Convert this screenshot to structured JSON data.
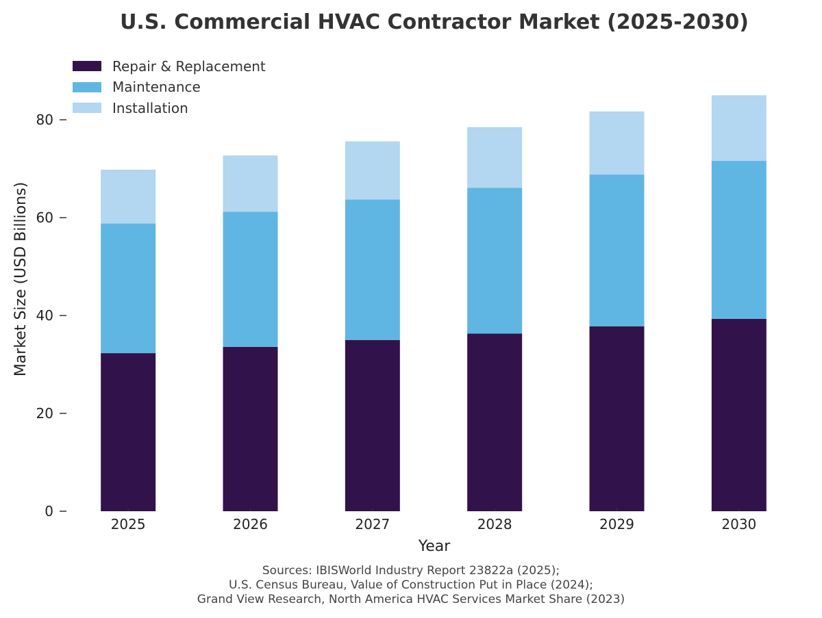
{
  "chart_data": {
    "type": "bar",
    "stacked": true,
    "title": "U.S. Commercial HVAC Contractor Market (2025-2030)",
    "xlabel": "Year",
    "ylabel": "Market Size (USD Billions)",
    "categories": [
      "2025",
      "2026",
      "2027",
      "2028",
      "2029",
      "2030"
    ],
    "ylim": [
      0,
      92
    ],
    "yticks": [
      "0",
      "20",
      "40",
      "60",
      "80"
    ],
    "grid": false,
    "legend_position": "top-left",
    "series": [
      {
        "name": "Repair & Replacement",
        "color": "#32124a",
        "values": [
          32.3,
          33.6,
          35.0,
          36.3,
          37.8,
          39.3
        ]
      },
      {
        "name": "Maintenance",
        "color": "#5fb6e3",
        "values": [
          26.5,
          27.6,
          28.7,
          29.8,
          31.0,
          32.3
        ]
      },
      {
        "name": "Installation",
        "color": "#b3d6f1",
        "values": [
          11.0,
          11.5,
          11.9,
          12.4,
          12.9,
          13.4
        ]
      }
    ],
    "sources": [
      "Sources: IBISWorld Industry Report 23822a (2025);",
      "U.S. Census Bureau, Value of Construction Put in Place (2024);",
      "Grand View Research, North America HVAC Services Market Share (2023)"
    ]
  }
}
